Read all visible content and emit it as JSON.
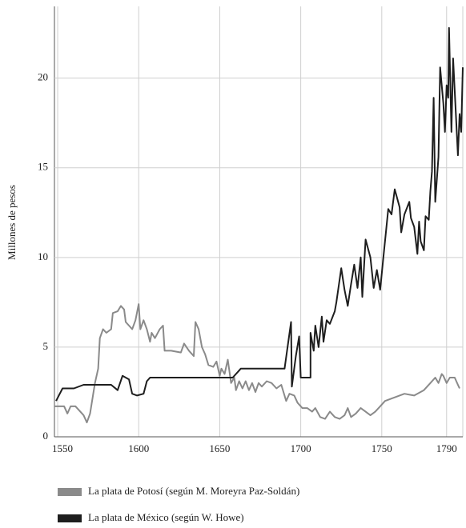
{
  "chart_data": {
    "type": "line",
    "y_label": "Millones de pesos",
    "xlim": [
      1548,
      1800
    ],
    "xticks": [
      1550,
      1600,
      1650,
      1700,
      1750,
      1790
    ],
    "ylim": [
      0,
      24
    ],
    "yticks": [
      0,
      5,
      10,
      15,
      20
    ],
    "grid": true,
    "legend": "bottom",
    "series": [
      {
        "name": "La plata de Potosí (según M. Moreyra Paz-Soldán)",
        "color": "#8a8a8a",
        "x": [
          1548,
          1554,
          1556,
          1558,
          1561,
          1566,
          1568,
          1570,
          1573,
          1575,
          1576,
          1578,
          1580,
          1583,
          1584,
          1587,
          1589,
          1591,
          1592,
          1594,
          1596,
          1598,
          1600,
          1601,
          1603,
          1605,
          1607,
          1608,
          1610,
          1613,
          1615,
          1616,
          1620,
          1626,
          1628,
          1631,
          1634,
          1635,
          1637,
          1639,
          1641,
          1643,
          1646,
          1648,
          1650,
          1651,
          1653,
          1655,
          1657,
          1659,
          1660,
          1662,
          1664,
          1666,
          1668,
          1670,
          1672,
          1674,
          1676,
          1679,
          1682,
          1685,
          1688,
          1691,
          1693,
          1696,
          1698,
          1701,
          1704,
          1707,
          1709,
          1712,
          1715,
          1718,
          1721,
          1724,
          1727,
          1729,
          1731,
          1734,
          1737,
          1740,
          1743,
          1746,
          1749,
          1752,
          1758,
          1764,
          1770,
          1776,
          1780,
          1783,
          1785,
          1787,
          1788,
          1790,
          1792,
          1795,
          1797,
          1798
        ],
        "values": [
          1.7,
          1.7,
          1.3,
          1.7,
          1.7,
          1.2,
          0.8,
          1.3,
          3.0,
          3.8,
          5.5,
          6.0,
          5.8,
          6.0,
          6.9,
          7.0,
          7.3,
          7.1,
          6.4,
          6.2,
          6.0,
          6.5,
          7.4,
          6.0,
          6.5,
          6.0,
          5.3,
          5.8,
          5.5,
          6.0,
          6.2,
          4.8,
          4.8,
          4.7,
          5.2,
          4.8,
          4.5,
          6.4,
          6.0,
          5.0,
          4.6,
          4.0,
          3.9,
          4.2,
          3.4,
          3.8,
          3.5,
          4.3,
          3.0,
          3.3,
          2.6,
          3.1,
          2.7,
          3.1,
          2.6,
          3.0,
          2.5,
          3.0,
          2.8,
          3.1,
          3.0,
          2.7,
          2.9,
          2.0,
          2.4,
          2.3,
          1.9,
          1.6,
          1.6,
          1.4,
          1.6,
          1.1,
          1.0,
          1.4,
          1.1,
          1.0,
          1.2,
          1.6,
          1.1,
          1.3,
          1.6,
          1.4,
          1.2,
          1.4,
          1.7,
          2.0,
          2.2,
          2.4,
          2.3,
          2.6,
          3.0,
          3.3,
          3.0,
          3.5,
          3.4,
          3.0,
          3.3,
          3.3,
          2.9,
          2.7
        ]
      },
      {
        "name": "La plata de México (según W. Howe)",
        "color": "#1e1e1e",
        "x": [
          1549,
          1553,
          1560,
          1566,
          1583,
          1587,
          1590,
          1594,
          1596,
          1599,
          1603,
          1605,
          1607,
          1658,
          1661,
          1663,
          1690,
          1694,
          1694.5,
          1697,
          1699,
          1700,
          1706,
          1706,
          1708,
          1709,
          1711,
          1713,
          1714,
          1716,
          1718,
          1721,
          1722,
          1725,
          1727,
          1729,
          1731,
          1733,
          1735,
          1737,
          1738,
          1740,
          1743,
          1745,
          1747,
          1749,
          1751,
          1754,
          1756,
          1758,
          1761,
          1762,
          1764,
          1767,
          1768,
          1770,
          1772,
          1773,
          1774,
          1776,
          1777,
          1779,
          1780,
          1781,
          1782,
          1783,
          1785,
          1786,
          1788,
          1789,
          1790,
          1791,
          1791.5,
          1793,
          1794,
          1797,
          1798,
          1799,
          1800
        ],
        "values": [
          2.0,
          2.7,
          2.7,
          2.9,
          2.9,
          2.6,
          3.4,
          3.2,
          2.4,
          2.3,
          2.4,
          3.1,
          3.3,
          3.3,
          3.6,
          3.8,
          3.8,
          6.4,
          2.8,
          4.5,
          5.6,
          3.3,
          3.3,
          5.8,
          4.8,
          6.2,
          5.0,
          6.7,
          5.3,
          6.5,
          6.3,
          7.0,
          7.5,
          9.4,
          8.2,
          7.3,
          8.5,
          9.6,
          8.3,
          10.0,
          7.8,
          11.0,
          10.0,
          8.3,
          9.3,
          8.2,
          10.0,
          12.7,
          12.4,
          13.8,
          12.8,
          11.4,
          12.4,
          13.1,
          12.2,
          11.7,
          10.2,
          12.0,
          10.9,
          10.4,
          12.3,
          12.1,
          13.7,
          14.8,
          18.9,
          13.1,
          15.6,
          20.6,
          18.6,
          17.0,
          19.6,
          18.9,
          22.8,
          17.0,
          21.1,
          15.7,
          18.0,
          17.0,
          20.6
        ]
      }
    ]
  }
}
